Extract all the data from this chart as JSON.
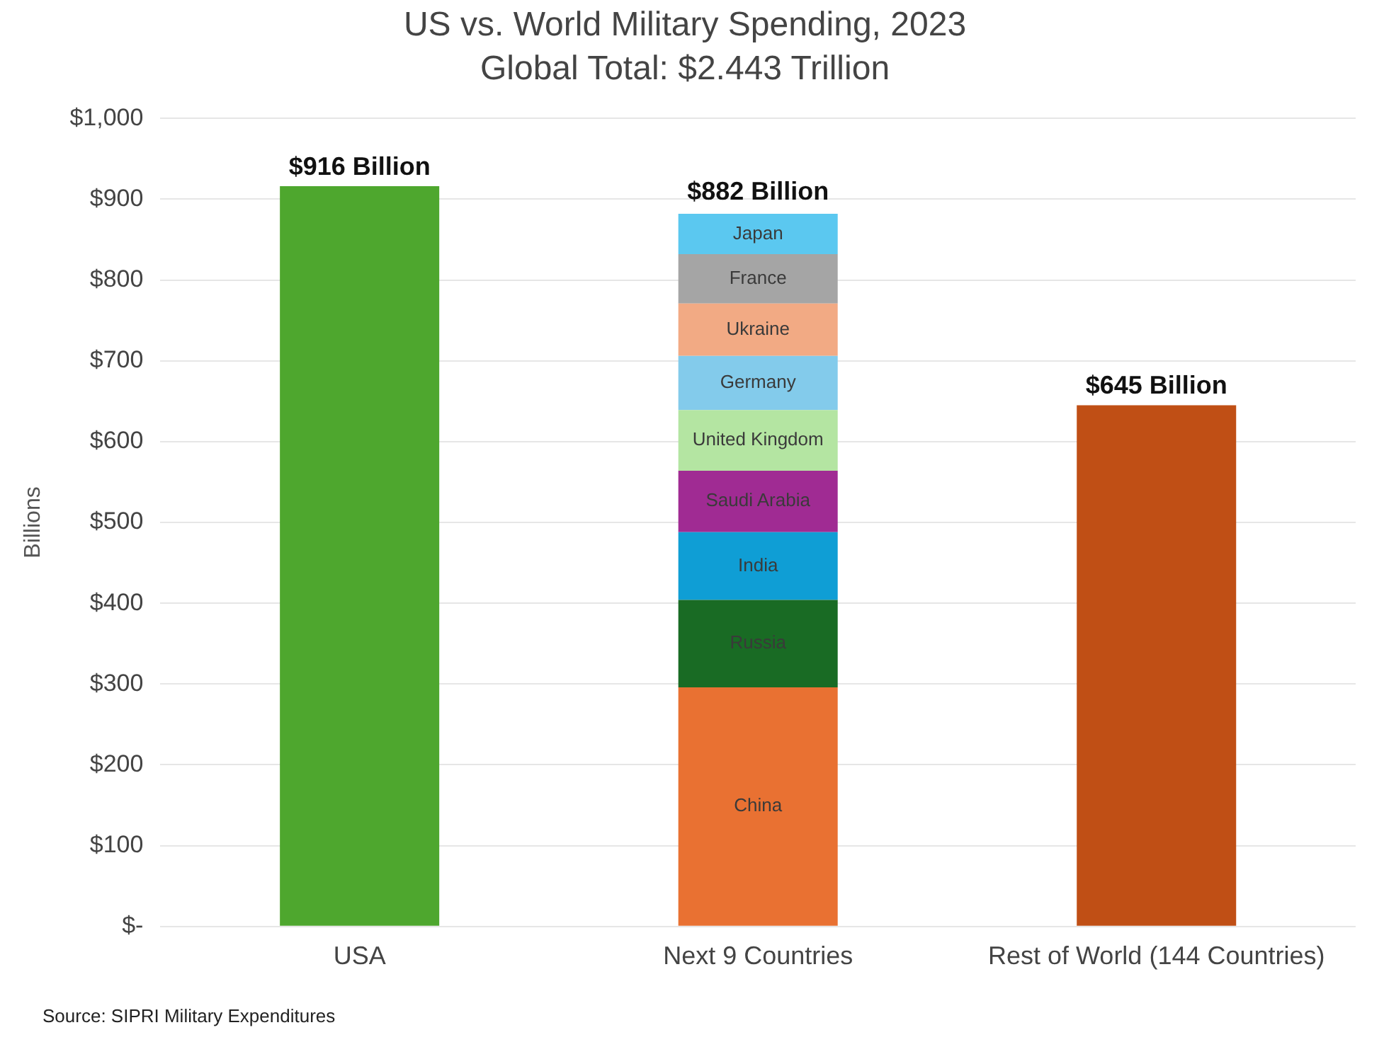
{
  "chart_data": {
    "type": "bar",
    "title": "US vs. World Military Spending, 2023",
    "subtitle": "Global Total: $2.443 Trillion",
    "ylabel": "Billions",
    "categories": [
      "USA",
      "Next 9 Countries",
      "Rest of World (144 Countries)"
    ],
    "stacked": true,
    "series": [
      {
        "color": "#4ea72e",
        "values": [
          916,
          null,
          null
        ],
        "value_labels": [
          "$916 Billion",
          null,
          null
        ]
      },
      {
        "name": "China",
        "color": "#e97132",
        "values": [
          null,
          296,
          null
        ]
      },
      {
        "name": "Russia",
        "color": "#196b24",
        "values": [
          null,
          108,
          null
        ]
      },
      {
        "name": "India",
        "color": "#0f9ed5",
        "values": [
          null,
          84,
          null
        ]
      },
      {
        "name": "Saudi Arabia",
        "color": "#a02b93",
        "values": [
          null,
          76,
          null
        ]
      },
      {
        "name": "United Kingdom",
        "color": "#b4e5a2",
        "values": [
          null,
          75,
          null
        ]
      },
      {
        "name": "Germany",
        "color": "#83cbeb",
        "values": [
          null,
          67,
          null
        ]
      },
      {
        "name": "Ukraine",
        "color": "#f2aa84",
        "values": [
          null,
          65,
          null
        ]
      },
      {
        "name": "France",
        "color": "#a5a5a5",
        "values": [
          null,
          61,
          null
        ]
      },
      {
        "name": "Japan",
        "color": "#5bc8f0",
        "values": [
          null,
          50,
          null
        ]
      },
      {
        "color": "#c04f15",
        "values": [
          null,
          null,
          645
        ],
        "value_labels": [
          null,
          null,
          "$645 Billion"
        ]
      }
    ],
    "totals": [
      null,
      "$882 Billion",
      null
    ],
    "ylim": [
      0,
      1000
    ],
    "yticks": [
      {
        "value": 0,
        "label": "$-"
      },
      {
        "value": 100,
        "label": "$100"
      },
      {
        "value": 200,
        "label": "$200"
      },
      {
        "value": 300,
        "label": "$300"
      },
      {
        "value": 400,
        "label": "$400"
      },
      {
        "value": 500,
        "label": "$500"
      },
      {
        "value": 600,
        "label": "$600"
      },
      {
        "value": 700,
        "label": "$700"
      },
      {
        "value": 800,
        "label": "$800"
      },
      {
        "value": 900,
        "label": "$900"
      },
      {
        "value": 1000,
        "label": "$1,000"
      }
    ],
    "grid": "y",
    "legend": false,
    "annotations": [
      "Source: SIPRI Military Expenditures"
    ]
  }
}
